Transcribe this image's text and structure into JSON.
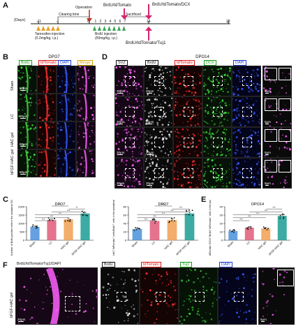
{
  "panels": {
    "A": "A",
    "B": "B",
    "C": "C",
    "D": "D",
    "E": "E",
    "F": "F"
  },
  "timeline": {
    "days_label": "(Days)",
    "ticks": [
      "-11",
      "-7",
      "0",
      "1",
      "2",
      "3",
      "4",
      "5",
      "6",
      "7",
      "14",
      "28"
    ],
    "clearing_time": "Clearing time",
    "operation": "Operation",
    "tamoxifen": [
      "Tamoxifen injection",
      "(0.2mg/kg, i.p.)"
    ],
    "brdu_inj": [
      "BrdU injection",
      "(50mg/kg, i.p.)"
    ],
    "brdu_tdtomato": "BrdU/tdTomato",
    "sacrificed": "Sacrificed",
    "dcx_label": "BrdU/tdTomato/DCX",
    "tuj1_label": "BrdU/tdTomato/Tuj1",
    "colors": {
      "tamoxifen": "#e8a12c",
      "brdu": "#3aa655",
      "operation": "#c0392b",
      "sac": "#d6246e"
    }
  },
  "panelB": {
    "title": "DPO7",
    "headers": [
      "BrdU",
      "tdTomato",
      "DAPI",
      "Merge"
    ],
    "header_colors": [
      "#1a9a1a",
      "#d11",
      "#1a3ad1",
      "#d9a000"
    ],
    "rows": [
      "Sham",
      "LC",
      "HAC gel",
      "bFGF-HAC gel"
    ],
    "scale": "80μm"
  },
  "panelD": {
    "title": "DPO14",
    "headers": [
      "SVZ",
      "BrdU",
      "tdTomato",
      "DCX",
      "DAPI"
    ],
    "header_colors": [
      "#111",
      "#111",
      "#d11",
      "#1a9a1a",
      "#1a3ad1"
    ],
    "scale_a": "30μm",
    "scale_b": "20μm",
    "scale_c": "5μm"
  },
  "panelC": {
    "chart_data": [
      {
        "type": "bar",
        "title": "DPO7",
        "ylabel": "Number of BrdU-positive cells in the ipsilateral SVZ(/mm²)",
        "categories": [
          "Sham",
          "LC",
          "HAC gel",
          "bFGF-HAC gel"
        ],
        "values": [
          800,
          1200,
          1250,
          1600
        ],
        "errors": [
          60,
          70,
          80,
          70
        ],
        "ylim": [
          0,
          2000
        ],
        "yticks": [
          "0",
          "500",
          "1000",
          "1500",
          "2000"
        ],
        "colors": [
          "#4a90d9",
          "#e05a7a",
          "#f0a050",
          "#1a9c93"
        ],
        "sig": [
          "***",
          "***",
          "***",
          "***",
          "**",
          "**"
        ]
      },
      {
        "type": "bar",
        "title": "DPO7",
        "ylabel": "BrdU⁺/tdTomato⁺ cells/BrdU⁺ cells in the ipsilateral SVZ(%)",
        "categories": [
          "Sham",
          "LC",
          "HAC gel",
          "bFGF-HAC gel"
        ],
        "values": [
          27,
          46,
          48,
          64
        ],
        "errors": [
          2,
          3,
          3,
          4
        ],
        "ylim": [
          0,
          80
        ],
        "yticks": [
          "0",
          "20",
          "40",
          "60",
          "80"
        ],
        "colors": [
          "#4a90d9",
          "#e05a7a",
          "#f0a050",
          "#1a9c93"
        ],
        "sig": [
          "***",
          "***",
          "***",
          "***",
          "***",
          "***"
        ]
      }
    ]
  },
  "panelE": {
    "chart_data": {
      "type": "bar",
      "title": "DPO14",
      "ylabel": "BrdU⁺/tdTomato⁺/DCX⁺/BrdU⁺/tdTomato⁺ cells in the ipsilateral SVZ(%)",
      "categories": [
        "Sham",
        "LC",
        "HAC gel",
        "bFGF-HAC gel"
      ],
      "values": [
        11,
        15,
        14,
        29
      ],
      "errors": [
        1,
        1,
        1,
        1.5
      ],
      "ylim": [
        0,
        40
      ],
      "yticks": [
        "0",
        "10",
        "20",
        "30",
        "40"
      ],
      "colors": [
        "#4a90d9",
        "#e05a7a",
        "#f0a050",
        "#1a9c93"
      ],
      "sig": [
        "***",
        "***",
        "***",
        "***",
        "***"
      ]
    }
  },
  "panelF": {
    "row_label": "bFGF-HAC gel",
    "header_main": "BrdU/tdTomato/Tuj1/DAPI",
    "headers": [
      "BrdU",
      "tdTomato",
      "Tuj1",
      "DAPI"
    ],
    "header_colors": [
      "#111",
      "#d11",
      "#1a9a1a",
      "#1a3ad1"
    ],
    "scale_a": "20μm",
    "scale_b": "5μm"
  }
}
